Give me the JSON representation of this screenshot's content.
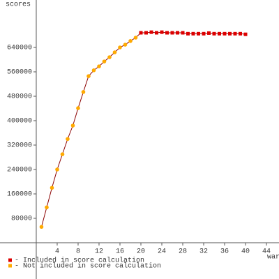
{
  "chart_data": {
    "type": "line",
    "y_label": "scores",
    "x_label": "war",
    "xlim": [
      -6.93,
      46.4
    ],
    "ylim": [
      -118857,
      795429
    ],
    "xticks": [
      4,
      8,
      12,
      16,
      20,
      24,
      28,
      32,
      36,
      40,
      44
    ],
    "yticks": [
      80000,
      160000,
      240000,
      320000,
      400000,
      480000,
      560000,
      640000
    ],
    "line_color": "#8b0000",
    "series": [
      {
        "name": "- Included in score calculation",
        "color": "#dd0000",
        "x": [
          20,
          21,
          22,
          23,
          24,
          25,
          26,
          27,
          28,
          29,
          30,
          31,
          32,
          33,
          34,
          35,
          36,
          37,
          38,
          39,
          40
        ],
        "values": [
          688000,
          688000,
          690000,
          688000,
          690000,
          688000,
          688000,
          688000,
          688000,
          685000,
          685000,
          685000,
          685000,
          687000,
          685000,
          685000,
          685000,
          685000,
          685000,
          685000,
          683000
        ]
      },
      {
        "name": "- Not included in score calculation",
        "color": "#ffaa00",
        "x": [
          1,
          2,
          3,
          4,
          5,
          6,
          7,
          8,
          9,
          10,
          11,
          12,
          13,
          14,
          15,
          16,
          17,
          18,
          19
        ],
        "values": [
          52000,
          116000,
          180000,
          240000,
          290000,
          340000,
          384000,
          441000,
          494000,
          546000,
          565000,
          578000,
          594000,
          608000,
          624000,
          640000,
          649000,
          661000,
          672000
        ]
      }
    ]
  }
}
